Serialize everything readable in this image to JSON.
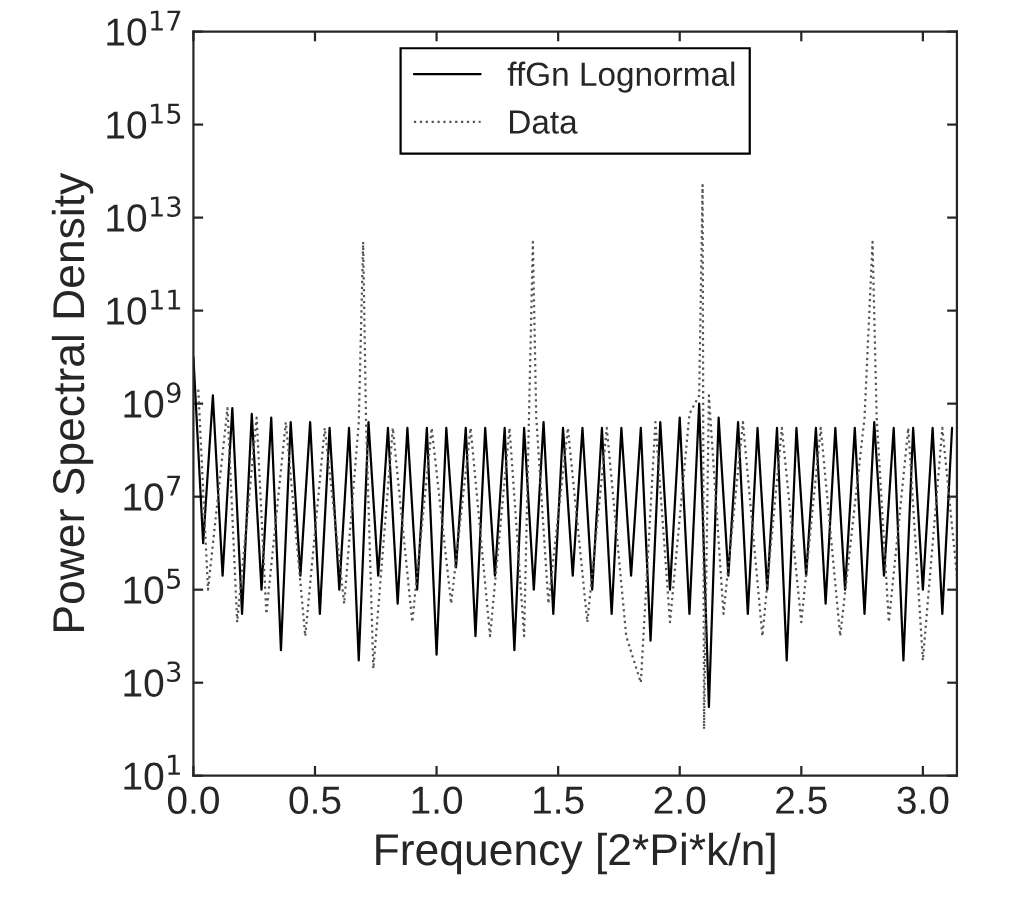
{
  "chart_data": {
    "type": "line",
    "xlabel": "Frequency [2*Pi*k/n]",
    "ylabel": "Power Spectral Density",
    "log": "y",
    "xlim": [
      0,
      3.14
    ],
    "xticks": [
      {
        "value": 0,
        "label": "0.0"
      },
      0.5,
      {
        "value": 1,
        "label": "1.0"
      },
      1.5,
      {
        "value": 2,
        "label": "2.0"
      },
      2.5,
      {
        "value": 3,
        "label": "3.0"
      }
    ],
    "ylim": [
      10,
      1e+17
    ],
    "yticks": [
      {
        "value": 10,
        "label": "10$^{1}$"
      },
      {
        "value": 1000,
        "label": "10$^{3}$"
      },
      {
        "value": 100000,
        "label": "10$^{5}$"
      },
      {
        "value": 10000000.0,
        "label": "10$^{7}$"
      },
      {
        "value": 1000000000.0,
        "label": "10$^{9}$"
      },
      {
        "value": 100000000000.0,
        "label": "10$^{11}$"
      },
      {
        "value": 10000000000000.0,
        "label": "10$^{13}$"
      },
      {
        "value": 1000000000000000.0,
        "label": "10$^{15}$"
      },
      {
        "value": 1e+17,
        "label": "10$^{17}$"
      }
    ],
    "grid": false,
    "legend": "top",
    "series": [
      {
        "name": "ffGn Lognormal",
        "color": "#000000",
        "line_style": "solid",
        "x": [
          0.0,
          0.04,
          0.08,
          0.12,
          0.16,
          0.2,
          0.24,
          0.28,
          0.32,
          0.36,
          0.4,
          0.44,
          0.48,
          0.52,
          0.56,
          0.6,
          0.64,
          0.68,
          0.72,
          0.76,
          0.8,
          0.84,
          0.88,
          0.92,
          0.96,
          1.0,
          1.04,
          1.08,
          1.12,
          1.16,
          1.2,
          1.24,
          1.28,
          1.32,
          1.36,
          1.4,
          1.44,
          1.48,
          1.52,
          1.56,
          1.6,
          1.64,
          1.68,
          1.72,
          1.76,
          1.8,
          1.84,
          1.88,
          1.92,
          1.96,
          2.0,
          2.04,
          2.08,
          2.12,
          2.16,
          2.2,
          2.24,
          2.28,
          2.32,
          2.36,
          2.4,
          2.44,
          2.48,
          2.52,
          2.56,
          2.6,
          2.64,
          2.68,
          2.72,
          2.76,
          2.8,
          2.84,
          2.88,
          2.92,
          2.96,
          3.0,
          3.04,
          3.08,
          3.12
        ],
        "values": [
          10000000000.0,
          1000000.0,
          1500000000.0,
          200000.0,
          800000000.0,
          30000.0,
          600000000.0,
          100000.0,
          500000000.0,
          5000.0,
          400000000.0,
          200000.0,
          400000000.0,
          30000.0,
          300000000.0,
          100000.0,
          300000000.0,
          3000.0,
          400000000.0,
          200000.0,
          300000000.0,
          50000.0,
          300000000.0,
          100000.0,
          300000000.0,
          4000.0,
          300000000.0,
          300000.0,
          300000000.0,
          10000.0,
          300000000.0,
          200000.0,
          300000000.0,
          5000.0,
          300000000.0,
          100000.0,
          400000000.0,
          30000.0,
          300000000.0,
          200000.0,
          300000000.0,
          100000.0,
          300000000.0,
          30000.0,
          300000000.0,
          200000.0,
          300000000.0,
          8000.0,
          400000000.0,
          100000.0,
          500000000.0,
          30000.0,
          1000000000.0,
          300.0,
          500000000.0,
          200000.0,
          400000000.0,
          30000.0,
          300000000.0,
          100000.0,
          300000000.0,
          3000.0,
          300000000.0,
          200000.0,
          300000000.0,
          50000.0,
          300000000.0,
          100000.0,
          300000000.0,
          30000.0,
          400000000.0,
          200000.0,
          300000000.0,
          3000.0,
          300000000.0,
          100000.0,
          300000000.0,
          30000.0,
          300000000.0
        ]
      },
      {
        "name": "Data",
        "color": "#555555",
        "line_style": "dotted",
        "x": [
          0.02,
          0.06,
          0.14,
          0.18,
          0.26,
          0.3,
          0.38,
          0.46,
          0.54,
          0.62,
          0.68,
          0.698,
          0.71,
          0.74,
          0.82,
          0.9,
          0.98,
          1.06,
          1.14,
          1.22,
          1.3,
          1.36,
          1.38,
          1.396,
          1.41,
          1.46,
          1.54,
          1.62,
          1.7,
          1.78,
          1.84,
          1.9,
          1.96,
          2.04,
          2.08,
          2.094,
          2.1,
          2.12,
          2.18,
          2.26,
          2.34,
          2.42,
          2.5,
          2.58,
          2.66,
          2.76,
          2.793,
          2.81,
          2.86,
          2.94,
          3.0,
          3.08,
          3.14
        ],
        "values": [
          2000000000.0,
          100000.0,
          800000000.0,
          20000.0,
          500000000.0,
          30000.0,
          400000000.0,
          10000.0,
          300000000.0,
          50000.0,
          400000000.0,
          3000000000000.0,
          400000000.0,
          2000.0,
          300000000.0,
          20000.0,
          300000000.0,
          50000.0,
          300000000.0,
          10000.0,
          300000000.0,
          10000.0,
          500000000.0,
          3000000000000.0,
          500000000.0,
          50000.0,
          300000000.0,
          20000.0,
          300000000.0,
          10000.0,
          1000.0,
          400000000.0,
          20000.0,
          600000000.0,
          1500000000.0,
          50000000000000.0,
          100.0,
          1500000000.0,
          30000.0,
          400000000.0,
          10000.0,
          300000000.0,
          20000.0,
          300000000.0,
          10000.0,
          500000000.0,
          3000000000000.0,
          500000000.0,
          20000.0,
          300000000.0,
          3000.0,
          300000000.0,
          200000.0
        ]
      }
    ]
  }
}
